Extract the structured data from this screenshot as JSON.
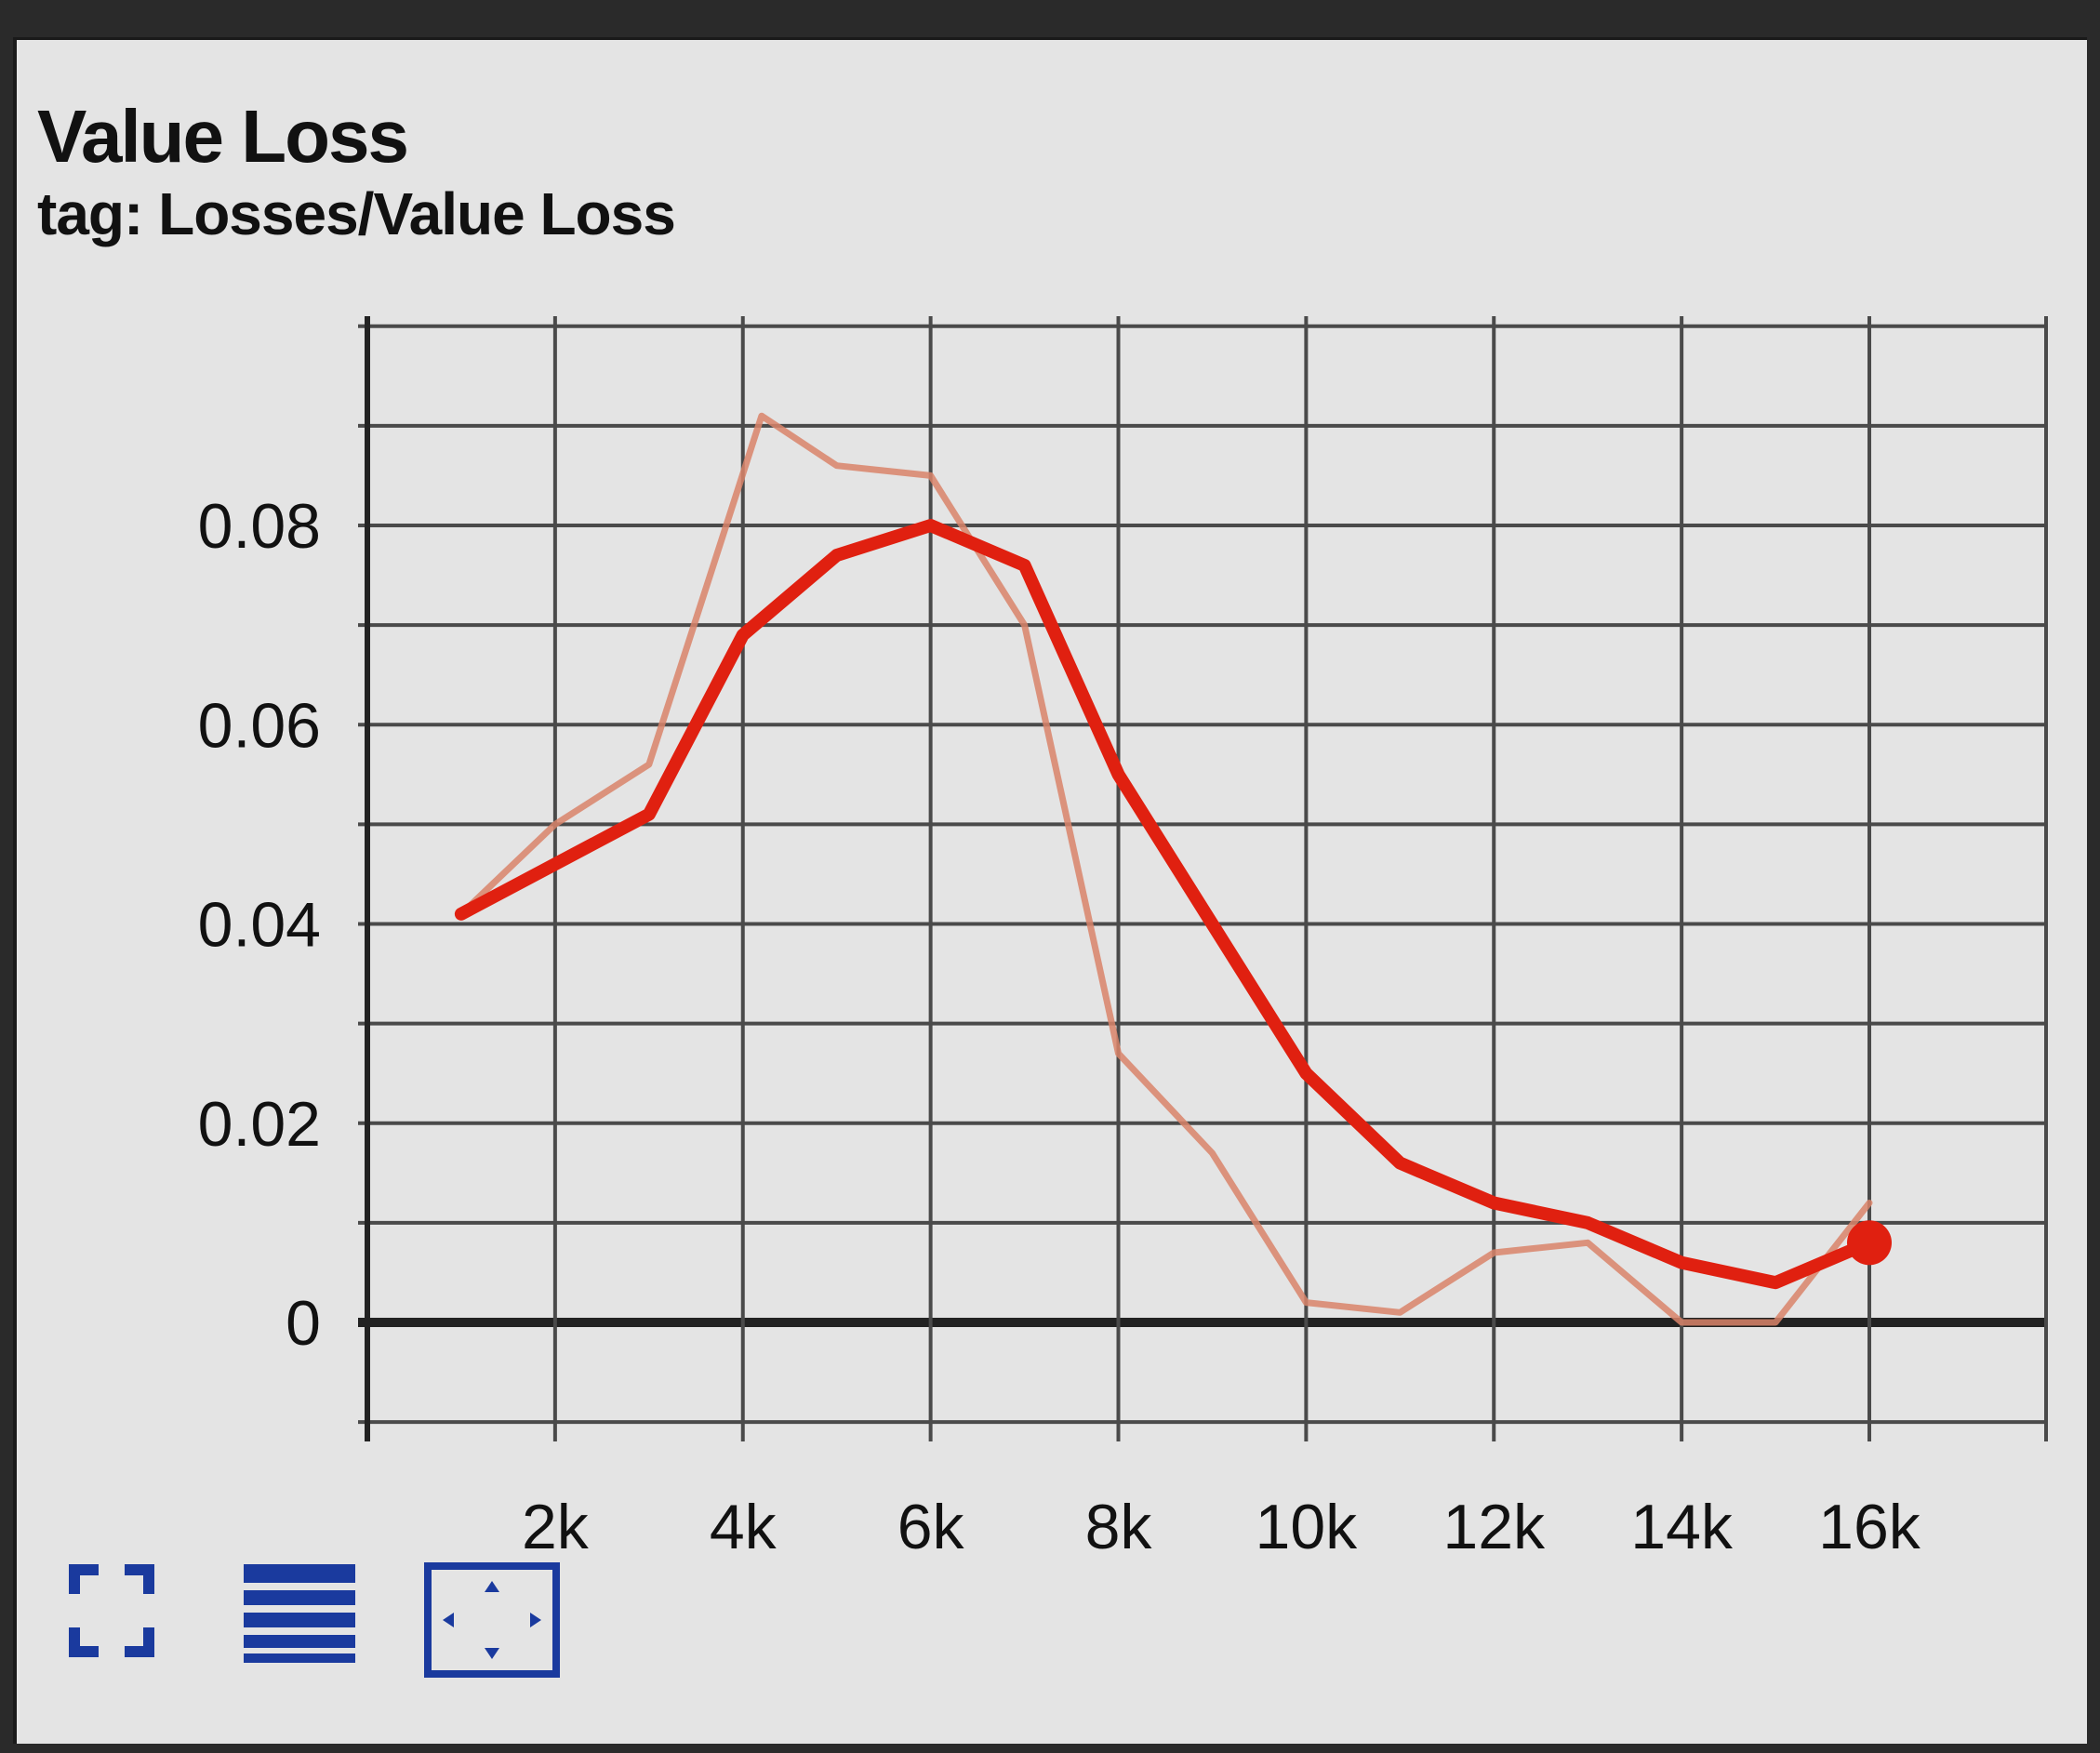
{
  "card": {
    "title": "Value Loss",
    "subtitle": "tag: Losses/Value Loss"
  },
  "chart_data": {
    "type": "line",
    "x_ticks": [
      "2k",
      "4k",
      "6k",
      "8k",
      "10k",
      "12k",
      "14k",
      "16k"
    ],
    "x_tick_values": [
      2000,
      4000,
      6000,
      8000,
      10000,
      12000,
      14000,
      16000
    ],
    "y_ticks": [
      "0",
      "0.02",
      "0.04",
      "0.06",
      "0.08"
    ],
    "y_tick_values": [
      0,
      0.02,
      0.04,
      0.06,
      0.08
    ],
    "xlim": [
      0,
      18000
    ],
    "ylim": [
      -0.01,
      0.1
    ],
    "grid": true,
    "series": [
      {
        "role": "raw",
        "color": "#d9846a",
        "x": [
          1000,
          2000,
          3000,
          4200,
          5000,
          6000,
          7000,
          8000,
          9000,
          10000,
          11000,
          12000,
          13000,
          14000,
          15000,
          16000
        ],
        "y": [
          0.041,
          0.05,
          0.056,
          0.091,
          0.086,
          0.085,
          0.07,
          0.027,
          0.017,
          0.002,
          0.001,
          0.007,
          0.008,
          0.0,
          0.0,
          0.012
        ]
      },
      {
        "role": "smoothed",
        "color": "#e02010",
        "x": [
          1000,
          2000,
          3000,
          4000,
          5000,
          6000,
          7000,
          8000,
          9000,
          10000,
          11000,
          12000,
          13000,
          14000,
          15000,
          16000
        ],
        "y": [
          0.041,
          0.046,
          0.051,
          0.069,
          0.077,
          0.08,
          0.076,
          0.055,
          0.04,
          0.025,
          0.016,
          0.012,
          0.01,
          0.006,
          0.004,
          0.008
        ]
      }
    ],
    "last_point_marker": {
      "x": 16000,
      "y": 0.008,
      "color": "#e02010"
    }
  },
  "toolbar": {
    "accent": "#1a3a9e",
    "tools": [
      {
        "name": "expand-icon"
      },
      {
        "name": "data-table-icon"
      },
      {
        "name": "fit-domain-icon"
      }
    ]
  }
}
